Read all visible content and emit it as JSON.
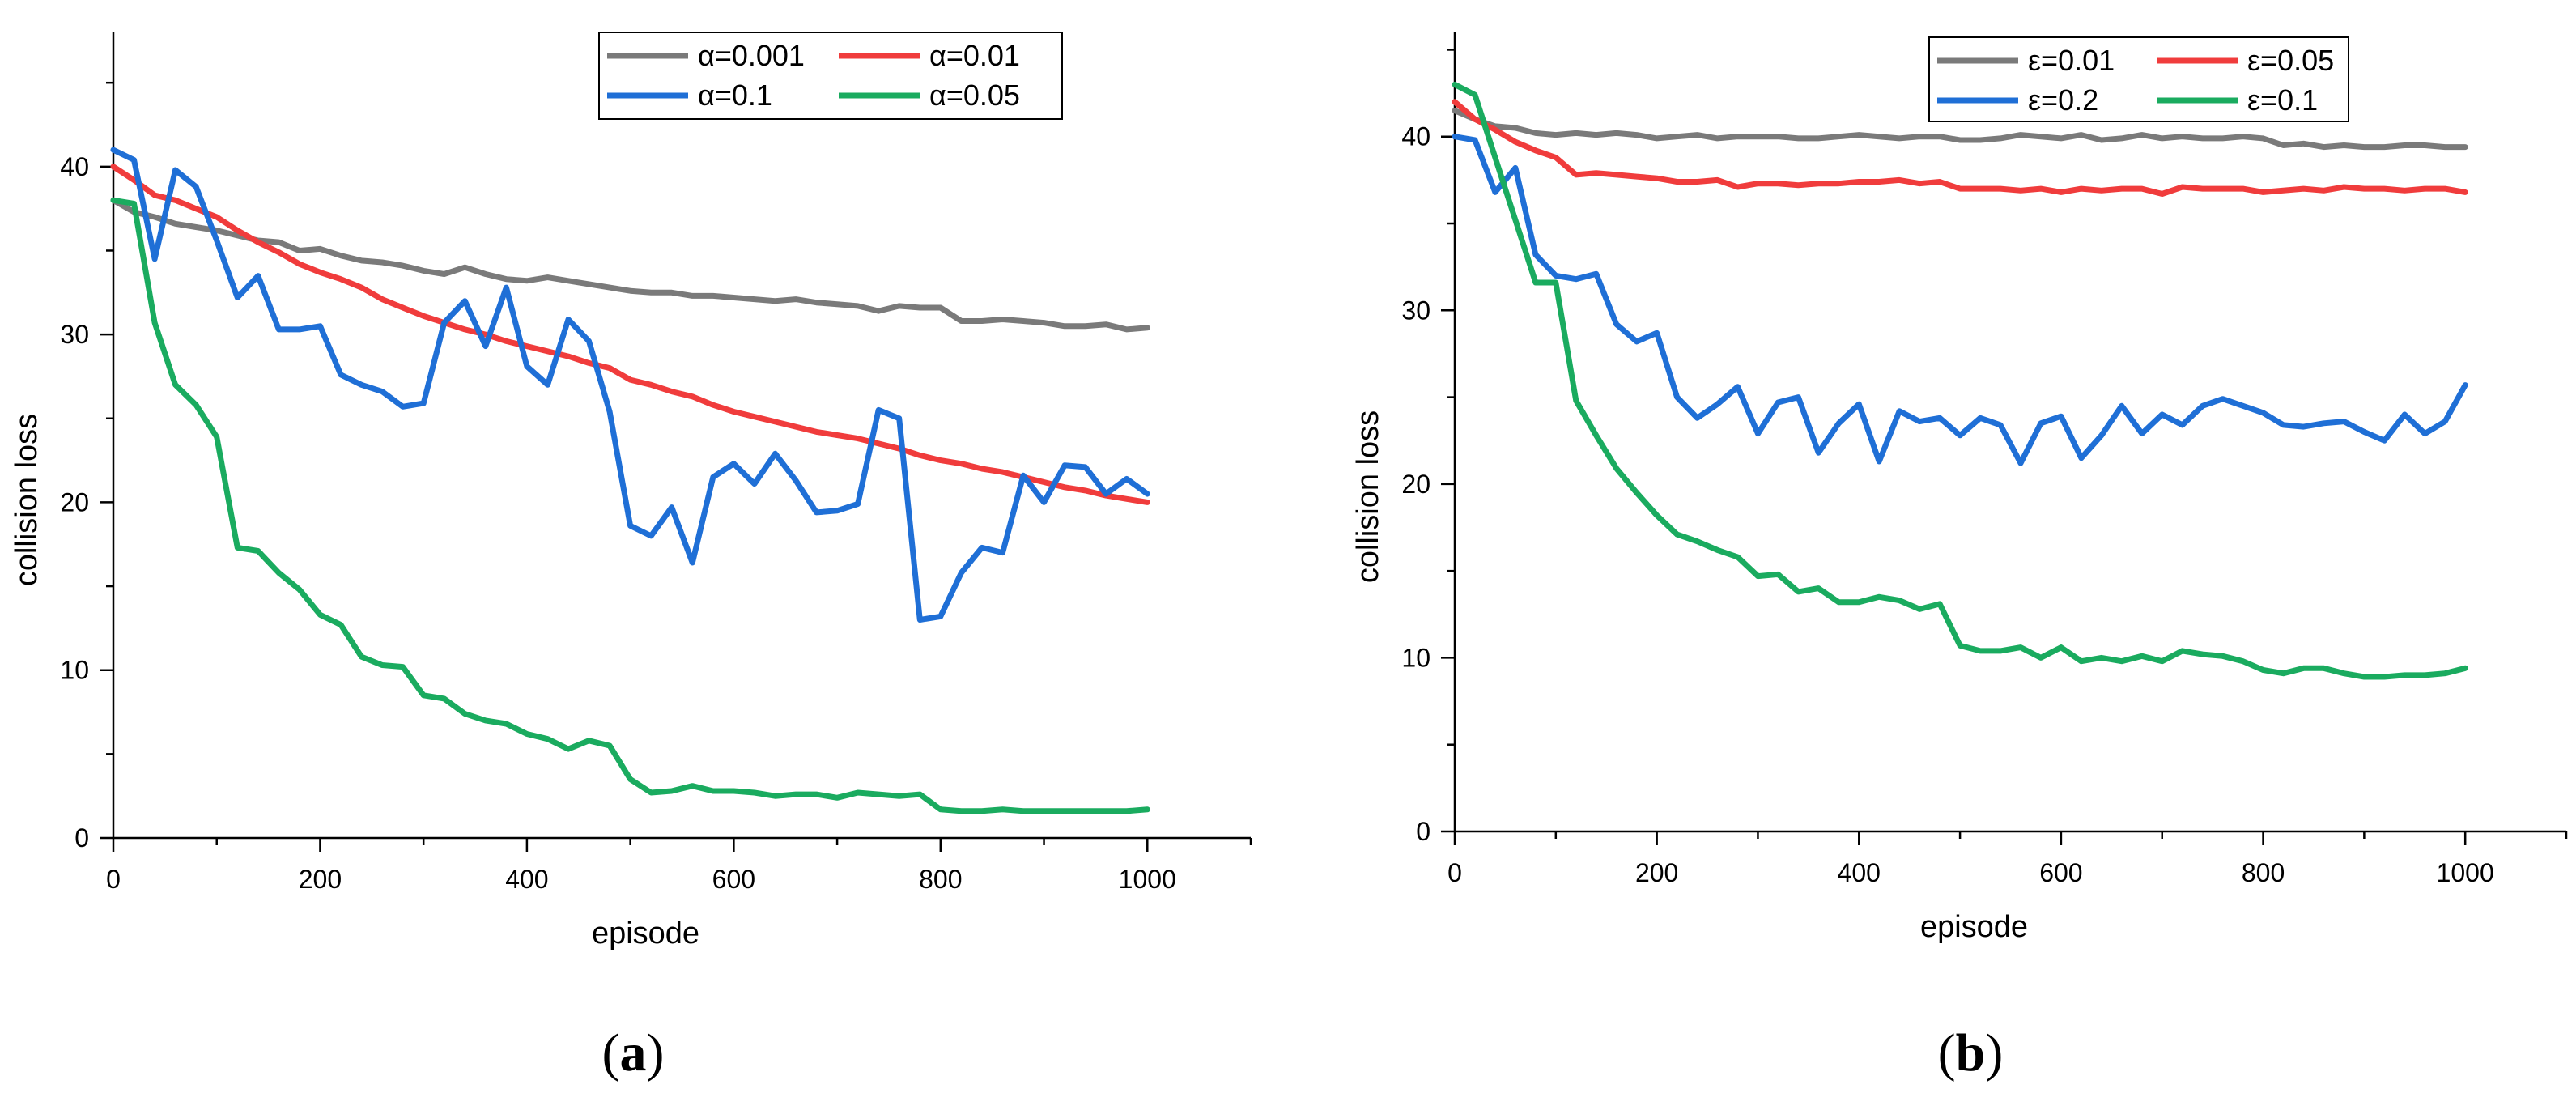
{
  "chart_data": [
    {
      "id": "a",
      "type": "line",
      "panel_label": "a",
      "xlabel": "episode",
      "ylabel": "collision loss",
      "xlim": [
        0,
        1100
      ],
      "ylim": [
        0,
        48
      ],
      "xticks": [
        0,
        200,
        400,
        600,
        800,
        1000
      ],
      "yticks": [
        0,
        10,
        20,
        30,
        40
      ],
      "grid": false,
      "legend_placement": "top-right",
      "x": [
        0,
        20,
        40,
        60,
        80,
        100,
        120,
        140,
        160,
        180,
        200,
        220,
        240,
        260,
        280,
        300,
        320,
        340,
        360,
        380,
        400,
        420,
        440,
        460,
        480,
        500,
        520,
        540,
        560,
        580,
        600,
        620,
        640,
        660,
        680,
        700,
        720,
        740,
        760,
        780,
        800,
        820,
        840,
        860,
        880,
        900,
        920,
        940,
        960,
        980,
        1000
      ],
      "series": [
        {
          "name": "α=0.001",
          "color": "#7a7a7a",
          "values": [
            38.0,
            37.3,
            37.0,
            36.6,
            36.4,
            36.2,
            35.9,
            35.6,
            35.5,
            35.0,
            35.1,
            34.7,
            34.4,
            34.3,
            34.1,
            33.8,
            33.6,
            34.0,
            33.6,
            33.3,
            33.2,
            33.4,
            33.2,
            33.0,
            32.8,
            32.6,
            32.5,
            32.5,
            32.3,
            32.3,
            32.2,
            32.1,
            32.0,
            32.1,
            31.9,
            31.8,
            31.7,
            31.4,
            31.7,
            31.6,
            31.6,
            30.8,
            30.8,
            30.9,
            30.8,
            30.7,
            30.5,
            30.5,
            30.6,
            30.3,
            30.4
          ]
        },
        {
          "name": "α=0.01",
          "color": "#f03c3c",
          "values": [
            40.0,
            39.2,
            38.3,
            38.0,
            37.5,
            37.0,
            36.2,
            35.5,
            34.9,
            34.2,
            33.7,
            33.3,
            32.8,
            32.1,
            31.6,
            31.1,
            30.7,
            30.3,
            30.0,
            29.6,
            29.3,
            29.0,
            28.7,
            28.3,
            28.0,
            27.3,
            27.0,
            26.6,
            26.3,
            25.8,
            25.4,
            25.1,
            24.8,
            24.5,
            24.2,
            24.0,
            23.8,
            23.5,
            23.2,
            22.8,
            22.5,
            22.3,
            22.0,
            21.8,
            21.5,
            21.2,
            20.9,
            20.7,
            20.4,
            20.2,
            20.0
          ]
        },
        {
          "name": "α=0.1",
          "color": "#1f6fd6",
          "values": [
            41.0,
            40.4,
            34.5,
            39.8,
            38.8,
            35.6,
            32.2,
            33.5,
            30.3,
            30.3,
            30.5,
            27.6,
            27.0,
            26.6,
            25.7,
            25.9,
            30.7,
            32.0,
            29.3,
            32.8,
            28.1,
            27.0,
            30.9,
            29.6,
            25.4,
            18.6,
            18.0,
            19.7,
            16.4,
            21.5,
            22.3,
            21.1,
            22.9,
            21.3,
            19.4,
            19.5,
            19.9,
            25.5,
            25.0,
            13.0,
            13.2,
            15.8,
            17.3,
            17.0,
            21.6,
            20.0,
            22.2,
            22.1,
            20.5,
            21.4,
            20.5
          ]
        },
        {
          "name": "α=0.05",
          "color": "#1aab5f",
          "values": [
            38.0,
            37.8,
            30.7,
            27.0,
            25.8,
            23.9,
            17.3,
            17.1,
            15.8,
            14.8,
            13.3,
            12.7,
            10.8,
            10.3,
            10.2,
            8.5,
            8.3,
            7.4,
            7.0,
            6.8,
            6.2,
            5.9,
            5.3,
            5.8,
            5.5,
            3.5,
            2.7,
            2.8,
            3.1,
            2.8,
            2.8,
            2.7,
            2.5,
            2.6,
            2.6,
            2.4,
            2.7,
            2.6,
            2.5,
            2.6,
            1.7,
            1.6,
            1.6,
            1.7,
            1.6,
            1.6,
            1.6,
            1.6,
            1.6,
            1.6,
            1.7
          ]
        }
      ]
    },
    {
      "id": "b",
      "type": "line",
      "panel_label": "b",
      "xlabel": "episode",
      "ylabel": "collision loss",
      "xlim": [
        0,
        1100
      ],
      "ylim": [
        0,
        46
      ],
      "xticks": [
        0,
        200,
        400,
        600,
        800,
        1000
      ],
      "yticks": [
        0,
        10,
        20,
        30,
        40
      ],
      "grid": false,
      "legend_placement": "top-right",
      "x": [
        0,
        20,
        40,
        60,
        80,
        100,
        120,
        140,
        160,
        180,
        200,
        220,
        240,
        260,
        280,
        300,
        320,
        340,
        360,
        380,
        400,
        420,
        440,
        460,
        480,
        500,
        520,
        540,
        560,
        580,
        600,
        620,
        640,
        660,
        680,
        700,
        720,
        740,
        760,
        780,
        800,
        820,
        840,
        860,
        880,
        900,
        920,
        940,
        960,
        980,
        1000
      ],
      "series": [
        {
          "name": "ε=0.01",
          "color": "#7a7a7a",
          "values": [
            41.5,
            41.0,
            40.6,
            40.5,
            40.2,
            40.1,
            40.2,
            40.1,
            40.2,
            40.1,
            39.9,
            40.0,
            40.1,
            39.9,
            40.0,
            40.0,
            40.0,
            39.9,
            39.9,
            40.0,
            40.1,
            40.0,
            39.9,
            40.0,
            40.0,
            39.8,
            39.8,
            39.9,
            40.1,
            40.0,
            39.9,
            40.1,
            39.8,
            39.9,
            40.1,
            39.9,
            40.0,
            39.9,
            39.9,
            40.0,
            39.9,
            39.5,
            39.6,
            39.4,
            39.5,
            39.4,
            39.4,
            39.5,
            39.5,
            39.4,
            39.4
          ]
        },
        {
          "name": "ε=0.05",
          "color": "#f03c3c",
          "values": [
            42.0,
            41.0,
            40.4,
            39.7,
            39.2,
            38.8,
            37.8,
            37.9,
            37.8,
            37.7,
            37.6,
            37.4,
            37.4,
            37.5,
            37.1,
            37.3,
            37.3,
            37.2,
            37.3,
            37.3,
            37.4,
            37.4,
            37.5,
            37.3,
            37.4,
            37.0,
            37.0,
            37.0,
            36.9,
            37.0,
            36.8,
            37.0,
            36.9,
            37.0,
            37.0,
            36.7,
            37.1,
            37.0,
            37.0,
            37.0,
            36.8,
            36.9,
            37.0,
            36.9,
            37.1,
            37.0,
            37.0,
            36.9,
            37.0,
            37.0,
            36.8
          ]
        },
        {
          "name": "ε=0.2",
          "color": "#1f6fd6",
          "values": [
            40.0,
            39.8,
            36.8,
            38.2,
            33.2,
            32.0,
            31.8,
            32.1,
            29.2,
            28.2,
            28.7,
            25.0,
            23.8,
            24.6,
            25.6,
            22.9,
            24.7,
            25.0,
            21.8,
            23.5,
            24.6,
            21.3,
            24.2,
            23.6,
            23.8,
            22.8,
            23.8,
            23.4,
            21.2,
            23.5,
            23.9,
            21.5,
            22.8,
            24.5,
            22.9,
            24.0,
            23.4,
            24.5,
            24.9,
            24.5,
            24.1,
            23.4,
            23.3,
            23.5,
            23.6,
            23.0,
            22.5,
            24.0,
            22.9,
            23.6,
            25.7
          ]
        },
        {
          "name": "ε=0.1",
          "color": "#1aab5f",
          "values": [
            43.0,
            42.4,
            38.8,
            35.2,
            31.6,
            31.6,
            24.8,
            22.8,
            20.9,
            19.5,
            18.2,
            17.1,
            16.7,
            16.2,
            15.8,
            14.7,
            14.8,
            13.8,
            14.0,
            13.2,
            13.2,
            13.5,
            13.3,
            12.8,
            13.1,
            10.7,
            10.4,
            10.4,
            10.6,
            10.0,
            10.6,
            9.8,
            10.0,
            9.8,
            10.1,
            9.8,
            10.4,
            10.2,
            10.1,
            9.8,
            9.3,
            9.1,
            9.4,
            9.4,
            9.1,
            8.9,
            8.9,
            9.0,
            9.0,
            9.1,
            9.4
          ]
        }
      ]
    }
  ]
}
